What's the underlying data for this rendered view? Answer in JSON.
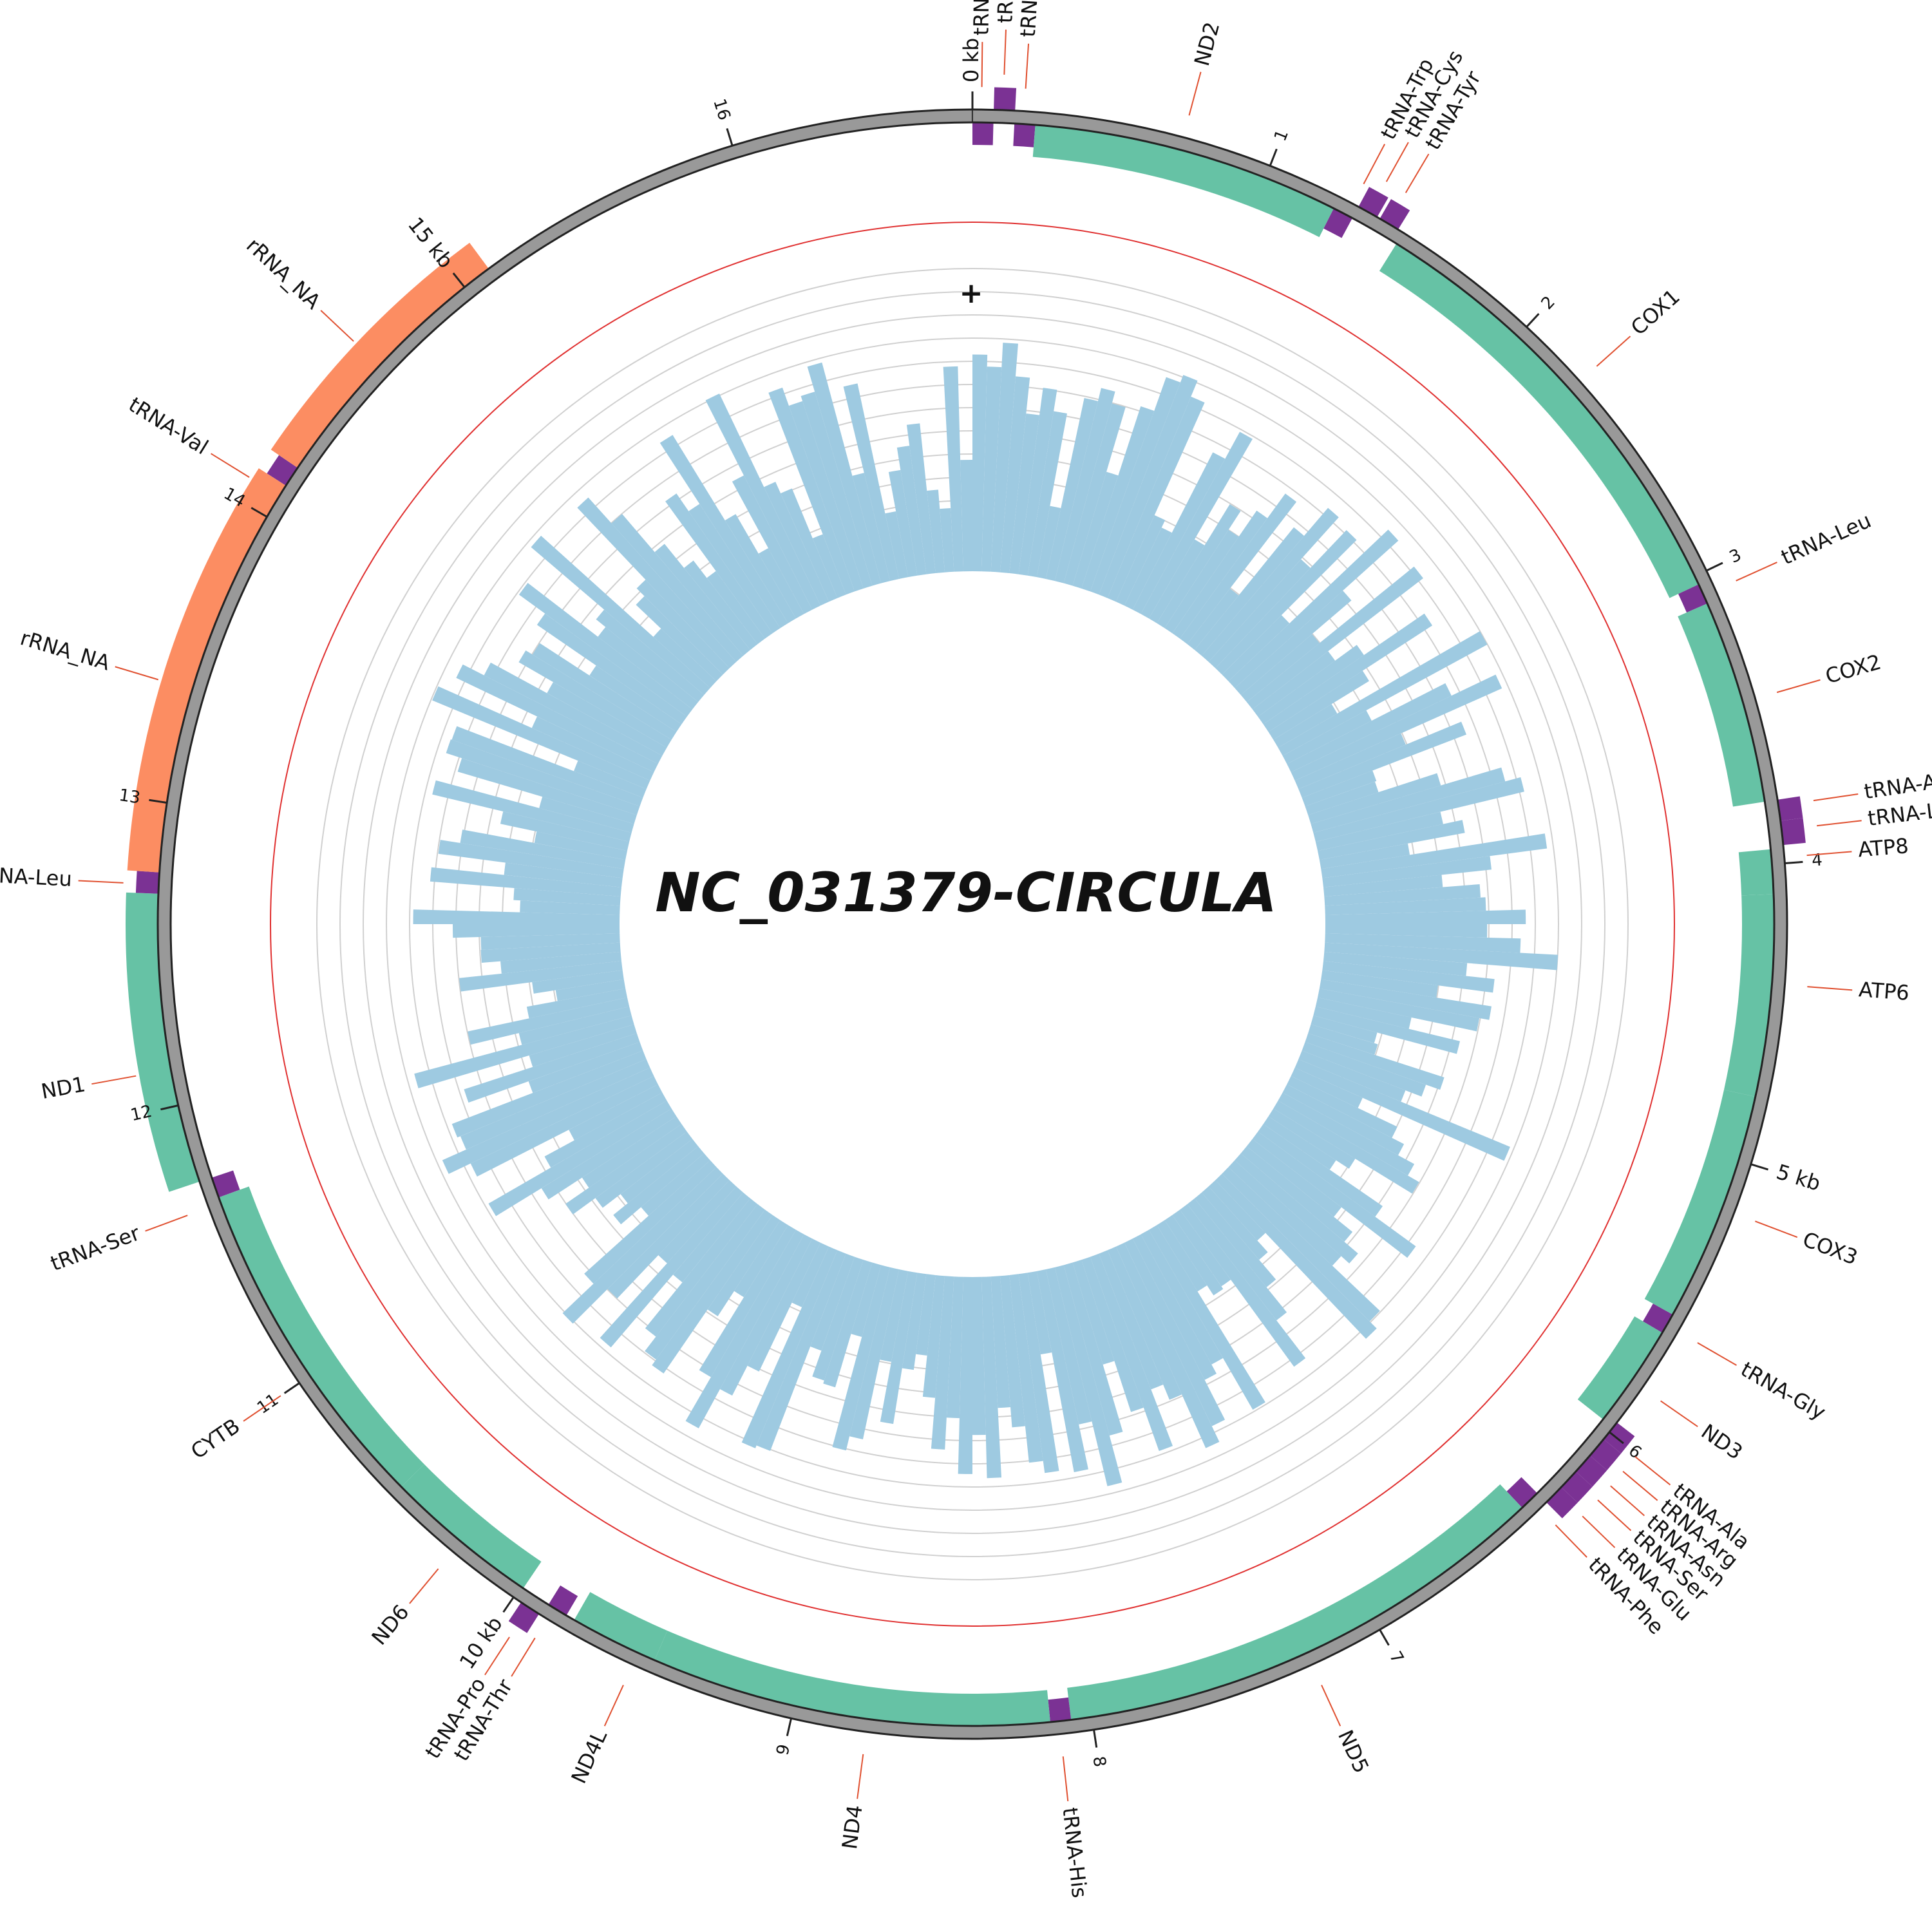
{
  "diagram": {
    "title": "NC_031379-CIRCULA",
    "genome_length_kb": 16.8,
    "strand_label": "+",
    "colors": {
      "background": "#ffffff",
      "backbone": "#999999",
      "cds": "#66c2a5",
      "trna": "#7b3294",
      "rrna": "#fc8d62",
      "label_line": "#e05030",
      "gc": "#9ecae1",
      "gc_reference": "#e03030",
      "grid": "#d0d0d0",
      "text": "#111111"
    },
    "ticks": [
      {
        "kb": 0,
        "label": "0 kb"
      },
      {
        "kb": 1,
        "label": "1"
      },
      {
        "kb": 2,
        "label": "2"
      },
      {
        "kb": 3,
        "label": "3"
      },
      {
        "kb": 4,
        "label": "4"
      },
      {
        "kb": 5,
        "label": "5 kb"
      },
      {
        "kb": 6,
        "label": "6"
      },
      {
        "kb": 7,
        "label": "7"
      },
      {
        "kb": 8,
        "label": "8"
      },
      {
        "kb": 9,
        "label": "9"
      },
      {
        "kb": 10,
        "label": "10 kb"
      },
      {
        "kb": 11,
        "label": "11"
      },
      {
        "kb": 12,
        "label": "12"
      },
      {
        "kb": 13,
        "label": "13"
      },
      {
        "kb": 14,
        "label": "14"
      },
      {
        "kb": 15,
        "label": "15 kb"
      },
      {
        "kb": 16,
        "label": "16"
      }
    ],
    "features": [
      {
        "name": "tRNA-Ile",
        "type": "trna",
        "start_kb": 0.0,
        "end_kb": 0.07,
        "lane": "inner",
        "label_kb": 0.03
      },
      {
        "name": "tRNA-Gln",
        "type": "trna",
        "start_kb": 0.07,
        "end_kb": 0.14,
        "lane": "outer",
        "label_kb": 0.1
      },
      {
        "name": "tRNA-Met",
        "type": "trna",
        "start_kb": 0.14,
        "end_kb": 0.21,
        "lane": "inner",
        "label_kb": 0.17
      },
      {
        "name": "ND2",
        "type": "cds",
        "start_kb": 0.21,
        "end_kb": 1.25,
        "lane": "inner",
        "label_kb": 0.7
      },
      {
        "name": "tRNA-Trp",
        "type": "trna",
        "start_kb": 1.25,
        "end_kb": 1.32,
        "lane": "inner",
        "label_kb": 1.3
      },
      {
        "name": "tRNA-Cys",
        "type": "trna",
        "start_kb": 1.32,
        "end_kb": 1.39,
        "lane": "outer",
        "label_kb": 1.36
      },
      {
        "name": "tRNA-Tyr",
        "type": "trna",
        "start_kb": 1.4,
        "end_kb": 1.47,
        "lane": "outer",
        "label_kb": 1.43
      },
      {
        "name": "COX1",
        "type": "cds",
        "start_kb": 1.49,
        "end_kb": 3.03,
        "lane": "inner",
        "label_kb": 2.25
      },
      {
        "name": "tRNA-Leu",
        "type": "trna",
        "start_kb": 3.03,
        "end_kb": 3.1,
        "lane": "inner",
        "label_kb": 3.07
      },
      {
        "name": "COX2",
        "type": "cds",
        "start_kb": 3.1,
        "end_kb": 3.79,
        "lane": "inner",
        "label_kb": 3.45
      },
      {
        "name": "tRNA-Asp",
        "type": "trna",
        "start_kb": 3.79,
        "end_kb": 3.86,
        "lane": "outer",
        "label_kb": 3.81
      },
      {
        "name": "tRNA-Lys",
        "type": "trna",
        "start_kb": 3.86,
        "end_kb": 3.94,
        "lane": "outer",
        "label_kb": 3.89
      },
      {
        "name": "ATP8",
        "type": "cds",
        "start_kb": 3.95,
        "end_kb": 4.1,
        "lane": "inner",
        "label_kb": 3.98
      },
      {
        "name": "ATP6",
        "type": "cds",
        "start_kb": 4.1,
        "end_kb": 4.78,
        "lane": "inner",
        "label_kb": 4.4
      },
      {
        "name": "COX3",
        "type": "cds",
        "start_kb": 4.78,
        "end_kb": 5.56,
        "lane": "inner",
        "label_kb": 5.17
      },
      {
        "name": "tRNA-Gly",
        "type": "trna",
        "start_kb": 5.56,
        "end_kb": 5.63,
        "lane": "inner",
        "label_kb": 5.6
      },
      {
        "name": "ND3",
        "type": "cds",
        "start_kb": 5.63,
        "end_kb": 5.98,
        "lane": "inner",
        "label_kb": 5.82
      },
      {
        "name": "tRNA-Ala",
        "type": "trna",
        "start_kb": 5.96,
        "end_kb": 6.03,
        "lane": "outer",
        "label_kb": 6.01
      },
      {
        "name": "tRNA-Arg",
        "type": "trna",
        "start_kb": 6.03,
        "end_kb": 6.1,
        "lane": "outer",
        "label_kb": 6.07
      },
      {
        "name": "tRNA-Asn",
        "type": "trna",
        "start_kb": 6.1,
        "end_kb": 6.17,
        "lane": "outer",
        "label_kb": 6.13
      },
      {
        "name": "tRNA-Ser",
        "type": "trna",
        "start_kb": 6.17,
        "end_kb": 6.24,
        "lane": "outer",
        "label_kb": 6.19
      },
      {
        "name": "tRNA-Glu",
        "type": "trna",
        "start_kb": 6.24,
        "end_kb": 6.31,
        "lane": "outer",
        "label_kb": 6.26
      },
      {
        "name": "tRNA-Phe",
        "type": "trna",
        "start_kb": 6.31,
        "end_kb": 6.38,
        "lane": "inner",
        "label_kb": 6.34
      },
      {
        "name": "ND5",
        "type": "cds",
        "start_kb": 6.38,
        "end_kb": 8.07,
        "lane": "inner",
        "label_kb": 7.25
      },
      {
        "name": "tRNA-His",
        "type": "trna",
        "start_kb": 8.07,
        "end_kb": 8.14,
        "lane": "inner",
        "label_kb": 8.11
      },
      {
        "name": "ND4",
        "type": "cds",
        "start_kb": 8.14,
        "end_kb": 9.49,
        "lane": "inner",
        "label_kb": 8.75
      },
      {
        "name": "ND4L",
        "type": "cds",
        "start_kb": 9.49,
        "end_kb": 9.79,
        "lane": "inner",
        "label_kb": 9.55
      },
      {
        "name": "tRNA-Thr",
        "type": "trna",
        "start_kb": 9.82,
        "end_kb": 9.89,
        "lane": "inner",
        "label_kb": 9.87
      },
      {
        "name": "tRNA-Pro",
        "type": "trna",
        "start_kb": 9.9,
        "end_kb": 9.97,
        "lane": "outer",
        "label_kb": 9.94
      },
      {
        "name": "ND6",
        "type": "cds",
        "start_kb": 9.99,
        "end_kb": 10.52,
        "lane": "inner",
        "label_kb": 10.25
      },
      {
        "name": "CYTB",
        "type": "cds",
        "start_kb": 10.52,
        "end_kb": 11.67,
        "lane": "inner",
        "label_kb": 11.0
      },
      {
        "name": "tRNA-Ser",
        "type": "trna",
        "start_kb": 11.67,
        "end_kb": 11.74,
        "lane": "inner",
        "label_kb": 11.65
      },
      {
        "name": "ND1",
        "type": "cds",
        "start_kb": 11.74,
        "end_kb": 12.7,
        "lane": "outer",
        "label_kb": 12.12
      },
      {
        "name": "tRNA-Leu",
        "type": "trna",
        "start_kb": 12.7,
        "end_kb": 12.77,
        "lane": "outer",
        "label_kb": 12.73
      },
      {
        "name": "rRNA_NA",
        "type": "rrna",
        "start_kb": 12.77,
        "end_kb": 14.12,
        "lane": "outer",
        "label_kb": 13.38
      },
      {
        "name": "tRNA-Val",
        "type": "trna",
        "start_kb": 14.12,
        "end_kb": 14.19,
        "lane": "outer",
        "label_kb": 14.08
      },
      {
        "name": "rRNA_NA",
        "type": "rrna",
        "start_kb": 14.19,
        "end_kb": 15.1,
        "lane": "outer",
        "label_kb": 14.62
      }
    ],
    "gc_track": {
      "reference_value": 0.5,
      "max_value": 1.0,
      "bins": 240,
      "seed": 42
    }
  }
}
